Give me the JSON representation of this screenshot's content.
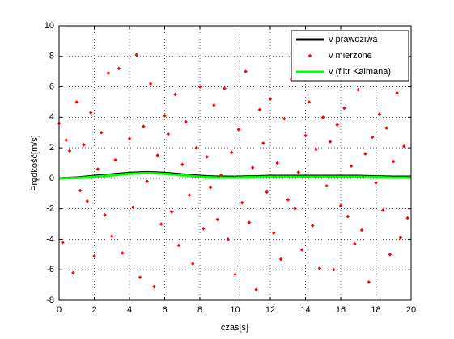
{
  "chart_data": {
    "type": "line",
    "xlabel": "czas[s]",
    "ylabel": "Prędkość[m/s]",
    "xlim": [
      0,
      20
    ],
    "ylim": [
      -8,
      10
    ],
    "xticks": [
      0,
      2,
      4,
      6,
      8,
      10,
      12,
      14,
      16,
      18,
      20
    ],
    "yticks": [
      -8,
      -6,
      -4,
      -2,
      0,
      2,
      4,
      6,
      8,
      10
    ],
    "grid": true,
    "legend": "upper right",
    "series": [
      {
        "name": "v prawdziwa",
        "color": "#000000",
        "style": "line",
        "x": [
          0,
          1,
          2,
          3,
          4,
          5,
          6,
          7,
          8,
          9,
          10,
          11,
          12,
          13,
          14,
          15,
          16,
          17,
          18,
          19,
          20
        ],
        "values": [
          0.0,
          0.05,
          0.15,
          0.25,
          0.35,
          0.4,
          0.35,
          0.25,
          0.15,
          0.1,
          0.1,
          0.12,
          0.15,
          0.15,
          0.15,
          0.15,
          0.15,
          0.15,
          0.12,
          0.1,
          0.1
        ]
      },
      {
        "name": "v mierzone",
        "color": "#ff0000",
        "style": "markers",
        "x": [
          0,
          0.2,
          0.4,
          0.6,
          0.8,
          1,
          1.2,
          1.4,
          1.6,
          1.8,
          2,
          2.2,
          2.4,
          2.6,
          2.8,
          3,
          3.2,
          3.4,
          3.6,
          3.8,
          4,
          4.2,
          4.4,
          4.6,
          4.8,
          5,
          5.2,
          5.4,
          5.6,
          5.8,
          6,
          6.2,
          6.4,
          6.6,
          6.8,
          7,
          7.2,
          7.4,
          7.6,
          7.8,
          8,
          8.2,
          8.4,
          8.6,
          8.8,
          9,
          9.2,
          9.4,
          9.6,
          9.8,
          10,
          10.2,
          10.4,
          10.6,
          10.8,
          11,
          11.2,
          11.4,
          11.6,
          11.8,
          12,
          12.2,
          12.4,
          12.6,
          12.8,
          13,
          13.2,
          13.4,
          13.6,
          13.8,
          14,
          14.2,
          14.4,
          14.6,
          14.8,
          15,
          15.2,
          15.4,
          15.6,
          15.8,
          16,
          16.2,
          16.4,
          16.6,
          16.8,
          17,
          17.2,
          17.4,
          17.6,
          17.8,
          18,
          18.2,
          18.4,
          18.6,
          18.8,
          19,
          19.2,
          19.4,
          19.6,
          19.8
        ],
        "values": [
          3.6,
          -4.2,
          2.5,
          1.8,
          -6.2,
          5.0,
          -0.8,
          2.2,
          -1.5,
          4.3,
          -5.1,
          0.6,
          3.0,
          -2.4,
          6.9,
          -3.8,
          1.2,
          7.2,
          -4.9,
          0.3,
          2.6,
          -1.9,
          8.1,
          -6.5,
          3.4,
          -0.2,
          6.2,
          -7.1,
          1.5,
          -3.0,
          4.1,
          2.9,
          -2.2,
          5.5,
          -4.4,
          0.9,
          3.7,
          -1.1,
          -5.6,
          2.0,
          6.0,
          -3.3,
          1.4,
          -0.6,
          4.8,
          -2.7,
          0.2,
          5.9,
          -4.0,
          1.7,
          -6.3,
          3.2,
          -1.6,
          7.0,
          -2.9,
          0.7,
          -7.3,
          4.5,
          2.3,
          -0.9,
          5.2,
          -3.6,
          1.0,
          -5.3,
          3.9,
          -1.4,
          6.5,
          -2.0,
          0.4,
          -4.7,
          2.8,
          5.0,
          -3.1,
          1.9,
          -5.9,
          4.0,
          -0.5,
          2.4,
          -6.0,
          3.5,
          -1.8,
          4.6,
          -2.5,
          0.8,
          -4.3,
          5.8,
          -3.4,
          1.6,
          -6.8,
          2.7,
          -0.3,
          4.2,
          -2.1,
          3.3,
          -5.0,
          1.1,
          5.6,
          -3.9,
          2.1,
          -2.6
        ]
      },
      {
        "name": "v (filtr Kalmana)",
        "color": "#00ff00",
        "style": "line",
        "x": [
          0,
          1,
          2,
          3,
          4,
          5,
          6,
          7,
          8,
          9,
          10,
          11,
          12,
          13,
          14,
          15,
          16,
          17,
          18,
          19,
          20
        ],
        "values": [
          0.0,
          0.02,
          0.1,
          0.2,
          0.3,
          0.35,
          0.3,
          0.2,
          0.1,
          0.05,
          0.05,
          0.08,
          0.1,
          0.1,
          0.1,
          0.1,
          0.1,
          0.1,
          0.08,
          0.05,
          0.05
        ]
      }
    ]
  }
}
